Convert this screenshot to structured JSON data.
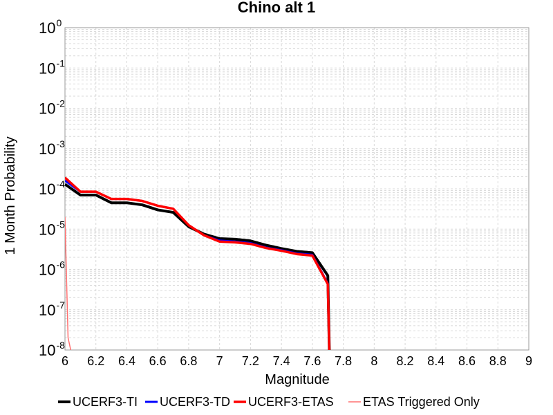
{
  "chart_data": {
    "type": "line",
    "title": "Chino alt 1",
    "xlabel": "Magnitude",
    "ylabel": "1 Month Probability",
    "xlim": [
      6,
      9
    ],
    "ylim": [
      1e-08,
      1
    ],
    "yscale": "log",
    "xticks": [
      "6",
      "6.2",
      "6.4",
      "6.6",
      "6.8",
      "7",
      "7.2",
      "7.4",
      "7.6",
      "7.8",
      "8",
      "8.2",
      "8.4",
      "8.6",
      "8.8",
      "9"
    ],
    "yticks": [
      {
        "base": "10",
        "exp": "0",
        "value": 1
      },
      {
        "base": "10",
        "exp": "-1",
        "value": 0.1
      },
      {
        "base": "10",
        "exp": "-2",
        "value": 0.01
      },
      {
        "base": "10",
        "exp": "-3",
        "value": 0.001
      },
      {
        "base": "10",
        "exp": "-4",
        "value": 0.0001
      },
      {
        "base": "10",
        "exp": "-5",
        "value": 1e-05
      },
      {
        "base": "10",
        "exp": "-6",
        "value": 1e-06
      },
      {
        "base": "10",
        "exp": "-7",
        "value": 1e-07
      },
      {
        "base": "10",
        "exp": "-8",
        "value": 1e-08
      }
    ],
    "grid": true,
    "legend_position": "bottom",
    "series": [
      {
        "name": "UCERF3-TI",
        "color": "#000000",
        "x": [
          6.0,
          6.1,
          6.2,
          6.3,
          6.4,
          6.5,
          6.6,
          6.7,
          6.8,
          6.9,
          7.0,
          7.1,
          7.2,
          7.3,
          7.4,
          7.5,
          7.6,
          7.7,
          7.71
        ],
        "y": [
          0.00013,
          7e-05,
          7e-05,
          4.5e-05,
          4.5e-05,
          4e-05,
          3e-05,
          2.6e-05,
          1.15e-05,
          7.5e-06,
          5.8e-06,
          5.6e-06,
          5.1e-06,
          4e-06,
          3.3e-06,
          2.8e-06,
          2.6e-06,
          7e-07,
          5e-09
        ]
      },
      {
        "name": "UCERF3-TD",
        "color": "#0000ff",
        "x": [
          6.0,
          6.1,
          6.2,
          6.3,
          6.4,
          6.5,
          6.6,
          6.7,
          6.8,
          6.9,
          7.0,
          7.1,
          7.2,
          7.3,
          7.4,
          7.5,
          7.6,
          7.7,
          7.71
        ],
        "y": [
          0.00016,
          8.5e-05,
          8.5e-05,
          5.6e-05,
          5.6e-05,
          5e-05,
          3.8e-05,
          3.2e-05,
          1.25e-05,
          7e-06,
          5.2e-06,
          4.9e-06,
          4.5e-06,
          3.5e-06,
          3e-06,
          2.5e-06,
          2.3e-06,
          4.5e-07,
          5e-09
        ]
      },
      {
        "name": "UCERF3-ETAS",
        "color": "#ff0000",
        "x": [
          6.0,
          6.1,
          6.2,
          6.3,
          6.4,
          6.5,
          6.6,
          6.7,
          6.8,
          6.9,
          7.0,
          7.1,
          7.2,
          7.3,
          7.4,
          7.5,
          7.6,
          7.7,
          7.71
        ],
        "y": [
          0.00019,
          8.5e-05,
          8.5e-05,
          5.6e-05,
          5.6e-05,
          5e-05,
          3.8e-05,
          3.2e-05,
          1.25e-05,
          7e-06,
          4.9e-06,
          4.7e-06,
          4.3e-06,
          3.4e-06,
          2.9e-06,
          2.4e-06,
          2.2e-06,
          4.3e-07,
          5e-09
        ]
      },
      {
        "name": "ETAS Triggered Only",
        "color": "#ff7070",
        "x": [
          6.0,
          6.02,
          6.04
        ],
        "y": [
          2e-05,
          2e-08,
          5e-09
        ]
      }
    ]
  }
}
